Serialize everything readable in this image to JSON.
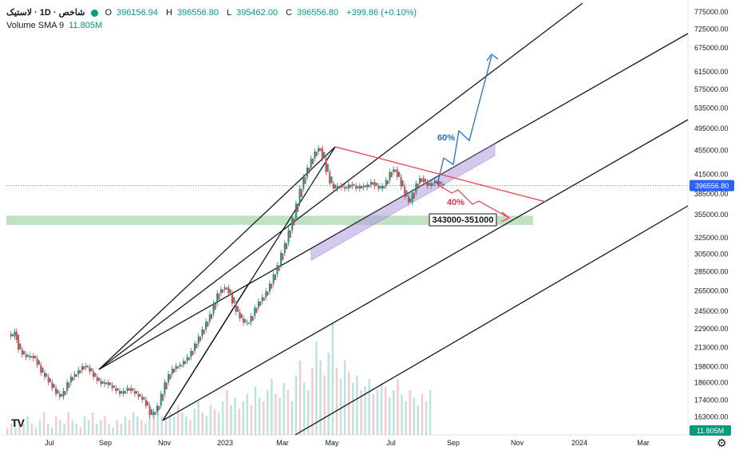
{
  "legend": {
    "symbol": "شاخص · 1D · لاستیک",
    "o_label": "O",
    "o_value": "396156.94",
    "h_label": "H",
    "h_value": "396556.80",
    "l_label": "L",
    "l_value": "395462.00",
    "c_label": "C",
    "c_value": "396556.80",
    "change": "+399.86 (+0.10%)",
    "volume_label": "Volume SMA 9",
    "volume_value": "11.805M"
  },
  "colors": {
    "up": "#089981",
    "down": "#f23645",
    "price_line": "#2962ff",
    "blue_arrow": "#1e6fd9",
    "red_line": "#f23645",
    "zone_green": "#a5d6a7",
    "purple_band": "#b39ddb",
    "channel": "#131722"
  },
  "chart_data": {
    "type": "candlestick",
    "y_axis": {
      "ticks": [
        775000,
        725000,
        675000,
        615000,
        575000,
        535000,
        495000,
        455000,
        415000,
        385000,
        355000,
        325000,
        305000,
        285000,
        265000,
        245000,
        229000,
        213000,
        198000,
        186000,
        174000,
        163000
      ],
      "tick_labels": [
        "775000.00",
        "725000.00",
        "675000.00",
        "615000.00",
        "575000.00",
        "535000.00",
        "495000.00",
        "455000.00",
        "415000.00",
        "385000.00",
        "355000.00",
        "325000.00",
        "305000.00",
        "285000.00",
        "265000.00",
        "245000.00",
        "229000.00",
        "213000.00",
        "198000.00",
        "186000.00",
        "174000.00",
        "163000.00"
      ],
      "scale": "log",
      "range": [
        152000,
        800000
      ]
    },
    "x_axis": {
      "tick_labels": [
        "Jul",
        "Sep",
        "Nov",
        "2023",
        "Mar",
        "May",
        "Jul",
        "Sep",
        "Nov",
        "2024",
        "Mar"
      ]
    },
    "last_price": 396556.8,
    "last_price_label": "396556.80",
    "volume_badge": "11.805M",
    "price_path": [
      [
        0,
        224000
      ],
      [
        2,
        222000
      ],
      [
        4,
        226000
      ],
      [
        5,
        219000
      ],
      [
        6,
        211000
      ],
      [
        8,
        207000
      ],
      [
        10,
        205000
      ],
      [
        12,
        206000
      ],
      [
        14,
        204000
      ],
      [
        16,
        199000
      ],
      [
        18,
        193000
      ],
      [
        20,
        190000
      ],
      [
        22,
        186000
      ],
      [
        24,
        182000
      ],
      [
        26,
        178000
      ],
      [
        28,
        176000
      ],
      [
        30,
        180000
      ],
      [
        32,
        186000
      ],
      [
        34,
        190000
      ],
      [
        36,
        192000
      ],
      [
        38,
        195000
      ],
      [
        40,
        198000
      ],
      [
        42,
        197000
      ],
      [
        44,
        194000
      ],
      [
        46,
        190000
      ],
      [
        48,
        187000
      ],
      [
        50,
        185000
      ],
      [
        52,
        186000
      ],
      [
        54,
        184000
      ],
      [
        56,
        182000
      ],
      [
        58,
        180000
      ],
      [
        60,
        178000
      ],
      [
        62,
        180000
      ],
      [
        64,
        182000
      ],
      [
        66,
        180000
      ],
      [
        68,
        178000
      ],
      [
        70,
        176000
      ],
      [
        72,
        174000
      ],
      [
        74,
        170000
      ],
      [
        76,
        164000
      ],
      [
        78,
        166000
      ],
      [
        80,
        170000
      ],
      [
        82,
        178000
      ],
      [
        84,
        186000
      ],
      [
        86,
        192000
      ],
      [
        88,
        196000
      ],
      [
        90,
        198000
      ],
      [
        92,
        199000
      ],
      [
        94,
        202000
      ],
      [
        96,
        205000
      ],
      [
        98,
        210000
      ],
      [
        100,
        216000
      ],
      [
        102,
        222000
      ],
      [
        104,
        228000
      ],
      [
        106,
        235000
      ],
      [
        108,
        242000
      ],
      [
        110,
        252000
      ],
      [
        112,
        262000
      ],
      [
        114,
        266000
      ],
      [
        116,
        268000
      ],
      [
        118,
        262000
      ],
      [
        120,
        252000
      ],
      [
        122,
        244000
      ],
      [
        124,
        238000
      ],
      [
        126,
        234000
      ],
      [
        128,
        234000
      ],
      [
        130,
        240000
      ],
      [
        132,
        248000
      ],
      [
        134,
        254000
      ],
      [
        136,
        258000
      ],
      [
        138,
        264000
      ],
      [
        140,
        272000
      ],
      [
        142,
        282000
      ],
      [
        144,
        292000
      ],
      [
        146,
        306000
      ],
      [
        148,
        318000
      ],
      [
        150,
        334000
      ],
      [
        152,
        350000
      ],
      [
        154,
        370000
      ],
      [
        156,
        392000
      ],
      [
        158,
        410000
      ],
      [
        160,
        425000
      ],
      [
        162,
        440000
      ],
      [
        164,
        452000
      ],
      [
        166,
        458000
      ],
      [
        168,
        440000
      ],
      [
        170,
        418000
      ],
      [
        172,
        400000
      ],
      [
        174,
        392000
      ],
      [
        176,
        396000
      ],
      [
        178,
        394000
      ],
      [
        180,
        392000
      ],
      [
        182,
        398000
      ],
      [
        184,
        396000
      ],
      [
        186,
        392000
      ],
      [
        188,
        396000
      ],
      [
        190,
        394000
      ],
      [
        192,
        398000
      ],
      [
        194,
        402000
      ],
      [
        196,
        396000
      ],
      [
        198,
        392000
      ],
      [
        200,
        396000
      ],
      [
        202,
        405000
      ],
      [
        204,
        418000
      ],
      [
        206,
        422000
      ],
      [
        208,
        410000
      ],
      [
        210,
        395000
      ],
      [
        212,
        380000
      ],
      [
        214,
        372000
      ],
      [
        216,
        386000
      ],
      [
        218,
        400000
      ],
      [
        220,
        408000
      ],
      [
        222,
        402000
      ],
      [
        224,
        396000
      ],
      [
        226,
        400000
      ],
      [
        228,
        404000
      ],
      [
        230,
        398000
      ],
      [
        232,
        396556.8
      ]
    ],
    "volume": [
      2,
      3,
      2,
      4,
      3,
      5,
      3,
      2,
      4,
      6,
      3,
      2,
      5,
      4,
      3,
      6,
      4,
      3,
      2,
      5,
      4,
      6,
      3,
      4,
      5,
      3,
      2,
      4,
      3,
      5,
      4,
      6,
      5,
      4,
      3,
      5,
      6,
      7,
      5,
      4,
      6,
      5,
      8,
      6,
      5,
      4,
      7,
      9,
      6,
      5,
      8,
      7,
      6,
      9,
      12,
      8,
      10,
      7,
      9,
      11,
      8,
      13,
      10,
      9,
      12,
      15,
      11,
      10,
      14,
      12,
      9,
      16,
      20,
      14,
      12,
      18,
      25,
      20,
      16,
      22,
      30,
      18,
      15,
      20,
      17,
      14,
      16,
      12,
      13,
      15,
      11,
      12,
      14,
      13,
      10,
      12,
      15,
      11,
      9,
      12,
      10,
      8,
      11,
      9,
      12
    ],
    "annotations": {
      "zone_label": "343000-351000",
      "zone_range": [
        343000,
        351000
      ],
      "up_target_label": "60%",
      "down_target_label": "40%"
    }
  }
}
